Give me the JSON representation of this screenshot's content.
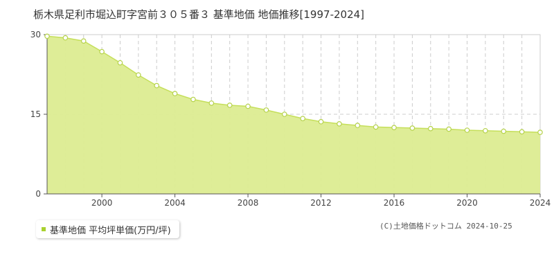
{
  "title": "栃木県足利市堀込町字宮前３０５番３ 基準地価 地価推移[1997-2024]",
  "legend": {
    "label": "基準地価 平均坪単価(万円/坪)"
  },
  "copyright": "(C)土地価格ドットコム 2024-10-25",
  "colors": {
    "fill": "#dcec91",
    "line": "#c5df5a",
    "marker_stroke": "#b5d24a",
    "legend_swatch": "#a9d12f",
    "grid": "#cccccc"
  },
  "chart_data": {
    "type": "area",
    "x": [
      1997,
      1998,
      1999,
      2000,
      2001,
      2002,
      2003,
      2004,
      2005,
      2006,
      2007,
      2008,
      2009,
      2010,
      2011,
      2012,
      2013,
      2014,
      2015,
      2016,
      2017,
      2018,
      2019,
      2020,
      2021,
      2022,
      2023,
      2024
    ],
    "series": [
      {
        "name": "基準地価 平均坪単価(万円/坪)",
        "values": [
          29.7,
          29.4,
          28.8,
          26.8,
          24.7,
          22.4,
          20.4,
          18.9,
          17.8,
          17.1,
          16.7,
          16.5,
          15.8,
          15.0,
          14.2,
          13.6,
          13.2,
          12.9,
          12.6,
          12.5,
          12.4,
          12.3,
          12.2,
          12.0,
          11.9,
          11.8,
          11.7,
          11.6
        ]
      }
    ],
    "xlim": [
      1997,
      2024
    ],
    "ylim": [
      0,
      30
    ],
    "x_ticks": [
      2000,
      2004,
      2008,
      2012,
      2016,
      2020,
      2024
    ],
    "y_ticks": [
      0,
      15,
      30
    ],
    "grid": true,
    "legend_position": "bottom-left"
  }
}
